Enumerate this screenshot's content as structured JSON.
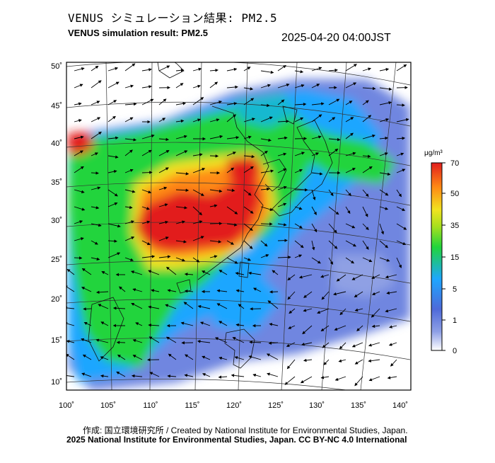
{
  "header": {
    "title_jp": "VENUS シミュレーション結果: PM2.5",
    "title_en": "VENUS simulation result: PM2.5",
    "timestamp": "2025-04-20 04:00JST"
  },
  "map": {
    "lon_ticks": [
      "100˚",
      "105˚",
      "110˚",
      "115˚",
      "120˚",
      "125˚",
      "130˚",
      "135˚",
      "140˚"
    ],
    "lat_ticks": [
      "50˚",
      "45˚",
      "40˚",
      "35˚",
      "30˚",
      "25˚",
      "20˚",
      "15˚",
      "10˚"
    ]
  },
  "colorbar": {
    "unit": "μg/m³",
    "ticks": [
      "70",
      "50",
      "35",
      "15",
      "5",
      "1",
      "0"
    ],
    "colors": {
      "c0": "#ffffff",
      "c1": "#4e6ad9",
      "c5": "#1ea6ff",
      "c15": "#20d43c",
      "c35": "#f1e320",
      "c50": "#ff8a14",
      "c70": "#e21e1e"
    }
  },
  "footer": {
    "credit_line1": "作成: 国立環境研究所 / Created by National Institute for Environmental Studies, Japan.",
    "credit_line2": "2025 National Institute for Environmental Studies, Japan. CC BY-NC 4.0 International"
  }
}
